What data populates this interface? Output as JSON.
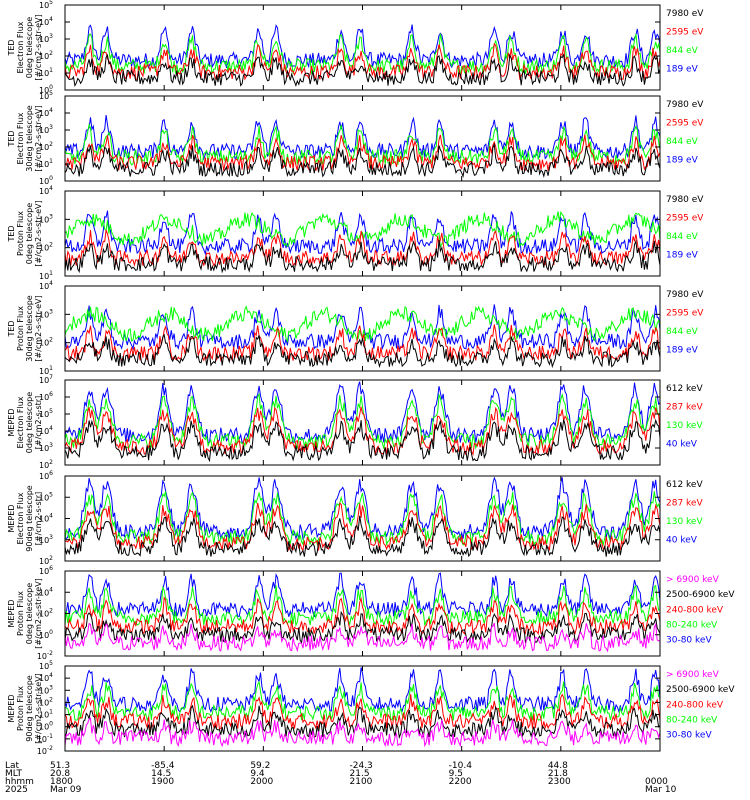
{
  "colors": {
    "blue": "#0000ff",
    "red": "#ff0000",
    "green": "#00ff00",
    "black": "#000000",
    "magenta": "#ff00ff"
  },
  "chart_data": {
    "type": "line",
    "panels": [
      {
        "ylabel": [
          "TED",
          "Electron Flux",
          "0deg telescope",
          "[#/cm2-s-str-eV]"
        ],
        "ytick_exps": [
          0,
          1,
          2,
          3,
          4,
          5
        ],
        "legend": [
          {
            "label": "7980 eV",
            "color": "black"
          },
          {
            "label": "2595 eV",
            "color": "red"
          },
          {
            "label": "844 eV",
            "color": "green"
          },
          {
            "label": "189 eV",
            "color": "blue"
          }
        ]
      },
      {
        "ylabel": [
          "TED",
          "Electron Flux",
          "30deg telescope",
          "[#/cm2-s-str-eV]"
        ],
        "ytick_exps": [
          0,
          1,
          2,
          3,
          4,
          5
        ],
        "legend": [
          {
            "label": "7980 eV",
            "color": "black"
          },
          {
            "label": "2595 eV",
            "color": "red"
          },
          {
            "label": "844 eV",
            "color": "green"
          },
          {
            "label": "189 eV",
            "color": "blue"
          }
        ]
      },
      {
        "ylabel": [
          "TED",
          "Proton Flux",
          "0deg telescope",
          "[#/cm2-s-str-eV]"
        ],
        "ytick_exps": [
          1,
          2,
          3,
          4
        ],
        "legend": [
          {
            "label": "7980 eV",
            "color": "black"
          },
          {
            "label": "2595 eV",
            "color": "red"
          },
          {
            "label": "844 eV",
            "color": "green"
          },
          {
            "label": "189 eV",
            "color": "blue"
          }
        ]
      },
      {
        "ylabel": [
          "TED",
          "Proton Flux",
          "30deg telescope",
          "[#/cm2-s-str-eV]"
        ],
        "ytick_exps": [
          1,
          2,
          3,
          4
        ],
        "legend": [
          {
            "label": "7980 eV",
            "color": "black"
          },
          {
            "label": "2595 eV",
            "color": "red"
          },
          {
            "label": "844 eV",
            "color": "green"
          },
          {
            "label": "189 eV",
            "color": "blue"
          }
        ]
      },
      {
        "ylabel": [
          "MEPED",
          "Electron Flux",
          "0deg telescope",
          "[#/cm2-s-str]"
        ],
        "ytick_exps": [
          2,
          3,
          4,
          5,
          6,
          7
        ],
        "legend": [
          {
            "label": "612 keV",
            "color": "black"
          },
          {
            "label": "287 keV",
            "color": "red"
          },
          {
            "label": "130 keV",
            "color": "green"
          },
          {
            "label": "40 keV",
            "color": "blue"
          }
        ]
      },
      {
        "ylabel": [
          "MEPED",
          "Electron Flux",
          "90deg telescope",
          "[#/cm2-s-str]"
        ],
        "ytick_exps": [
          2,
          3,
          4,
          5,
          6
        ],
        "legend": [
          {
            "label": "612 keV",
            "color": "black"
          },
          {
            "label": "287 keV",
            "color": "red"
          },
          {
            "label": "130 keV",
            "color": "green"
          },
          {
            "label": "40 keV",
            "color": "blue"
          }
        ]
      },
      {
        "ylabel": [
          "MEPED",
          "Proton Flux",
          "0deg telescope",
          "[#/cm2-s-str-keV]"
        ],
        "ytick_exps": [
          -2,
          0,
          2,
          4,
          6
        ],
        "legend": [
          {
            "label": "> 6900 keV",
            "color": "magenta"
          },
          {
            "label": "2500-6900 keV",
            "color": "black"
          },
          {
            "label": "240-800 keV",
            "color": "red"
          },
          {
            "label": "80-240 keV",
            "color": "green"
          },
          {
            "label": "30-80 keV",
            "color": "blue"
          }
        ]
      },
      {
        "ylabel": [
          "MEPED",
          "Proton Flux",
          "90deg telescope",
          "[#/cm2-s-str-keV]"
        ],
        "ytick_exps": [
          -2,
          -1,
          0,
          1,
          2,
          3,
          4,
          5
        ],
        "legend": [
          {
            "label": "> 6900 keV",
            "color": "magenta"
          },
          {
            "label": "2500-6900 keV",
            "color": "black"
          },
          {
            "label": "240-800 keV",
            "color": "red"
          },
          {
            "label": "80-240 keV",
            "color": "green"
          },
          {
            "label": "30-80 keV",
            "color": "blue"
          }
        ]
      }
    ],
    "x_axis": {
      "row_labels": [
        "Lat",
        "MLT",
        "hhmm",
        "2025"
      ],
      "columns": [
        {
          "lat": "51.3",
          "mlt": "20.8",
          "hhmm": "1800",
          "date": "Mar 09"
        },
        {
          "lat": "-85.4",
          "mlt": "14.5",
          "hhmm": "1900",
          "date": ""
        },
        {
          "lat": "59.2",
          "mlt": "9.4",
          "hhmm": "2000",
          "date": ""
        },
        {
          "lat": "-24.3",
          "mlt": "21.5",
          "hhmm": "2100",
          "date": ""
        },
        {
          "lat": "-10.4",
          "mlt": "9.5",
          "hhmm": "2200",
          "date": ""
        },
        {
          "lat": "44.8",
          "mlt": "21.8",
          "hhmm": "2300",
          "date": ""
        },
        {
          "lat": "",
          "mlt": "",
          "hhmm": "0000",
          "date": "Mar 10"
        }
      ],
      "range_hours": [
        18,
        24
      ]
    },
    "orbit_pass_centers_hours": [
      18.25,
      18.42,
      19.0,
      19.28,
      19.95,
      20.13,
      20.78,
      20.98,
      21.5,
      21.78,
      22.33,
      22.5,
      23.02,
      23.25,
      23.75,
      23.95
    ]
  }
}
